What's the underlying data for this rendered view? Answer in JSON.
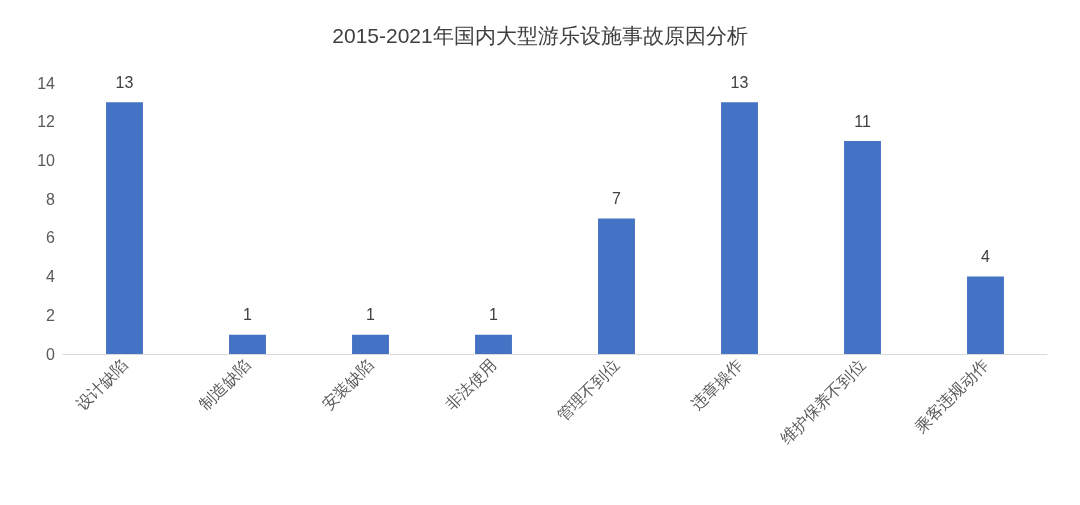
{
  "chart_data": {
    "type": "bar",
    "title": "2015-2021年国内大型游乐设施事故原因分析",
    "categories": [
      "设计缺陷",
      "制造缺陷",
      "安装缺陷",
      "非法使用",
      "管理不到位",
      "违章操作",
      "维护保养不到位",
      "乘客违规动作"
    ],
    "values": [
      13,
      1,
      1,
      1,
      7,
      13,
      11,
      4
    ],
    "color": "#4472c4",
    "ylim": [
      0,
      14
    ],
    "yticks": [
      0,
      2,
      4,
      6,
      8,
      10,
      12,
      14
    ],
    "grid": false,
    "data_labels": true
  }
}
